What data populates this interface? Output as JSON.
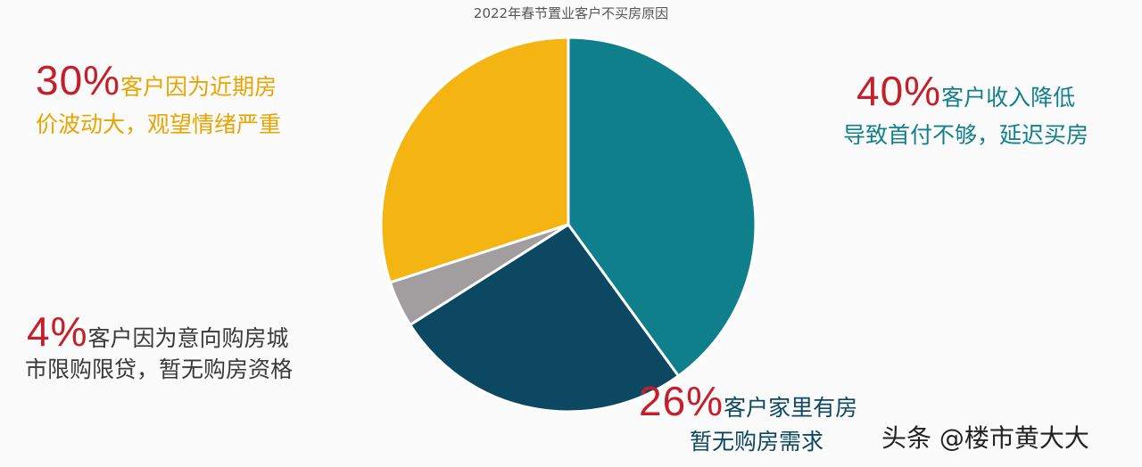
{
  "chart_data": {
    "type": "pie",
    "title": "2022年春节置业客户不买房原因",
    "values": [
      40,
      26,
      4,
      30
    ],
    "value_labels": [
      "40%",
      "26%",
      "4%",
      "30%"
    ],
    "labels": [
      [
        "客户收入降低",
        "导致首付不够，延迟买房"
      ],
      [
        "客户家里有房",
        "暂无购房需求"
      ],
      [
        "客户因为意向购房城",
        "市限购限贷，暂无购房资格"
      ],
      [
        "客户因为近期房",
        "价波动大，观望情绪严重"
      ]
    ],
    "colors": [
      "#0f7f8c",
      "#0c4862",
      "#a29e9f",
      "#f4b512"
    ],
    "label_colors": [
      "#12808c",
      "#0c4862",
      "#3a3a3a",
      "#e8a400"
    ],
    "value_label_color": "#c4202b",
    "watermark": "头条 @楼市黄大大"
  }
}
